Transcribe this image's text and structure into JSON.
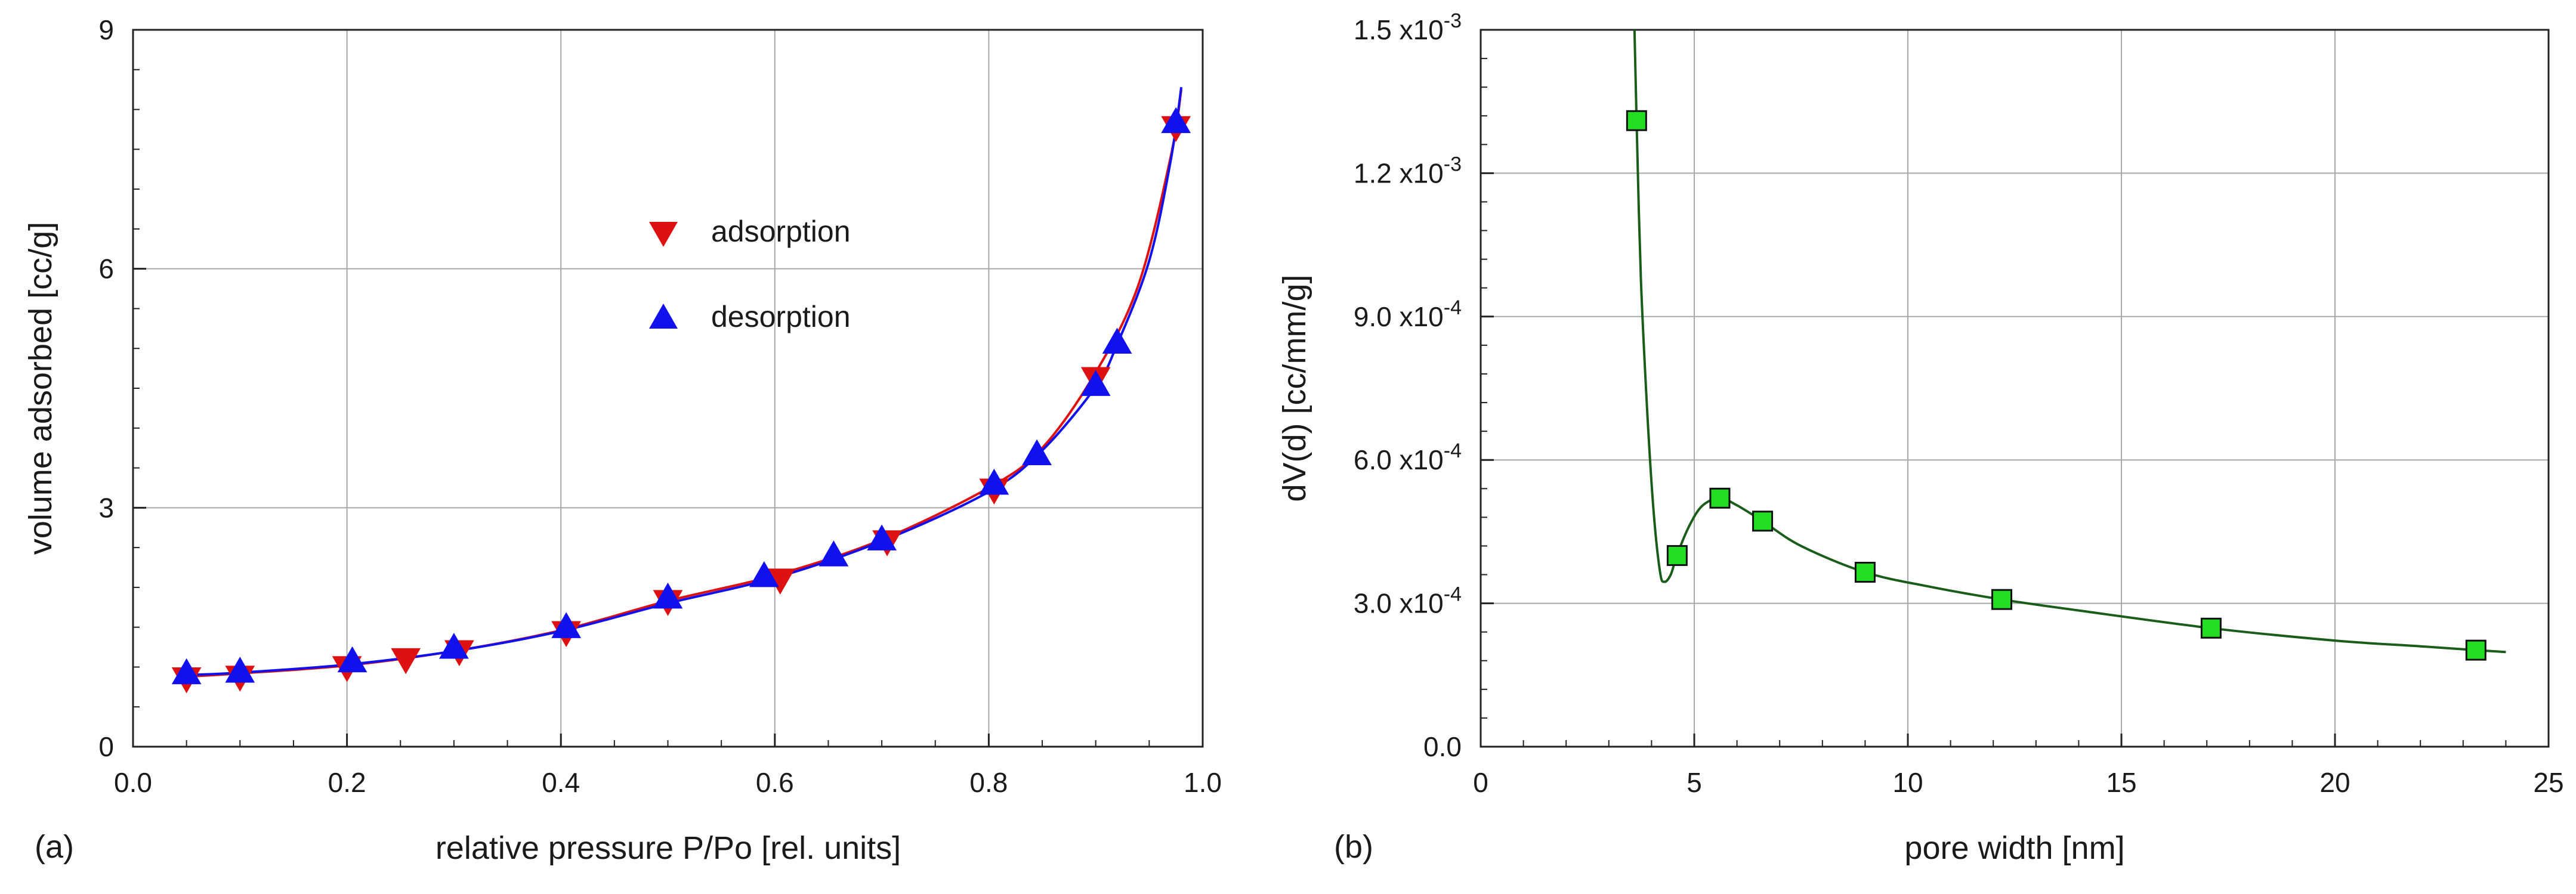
{
  "chart_data": [
    {
      "panel": "(a)",
      "type": "scatter",
      "xlabel": "relative pressure P/Po [rel. units]",
      "ylabel": "volume adsorbed [cc/g]",
      "xlim": [
        0.0,
        1.0
      ],
      "ylim": [
        0,
        9
      ],
      "xticks": [
        "0.0",
        "0.2",
        "0.4",
        "0.6",
        "0.8",
        "1.0"
      ],
      "yticks": [
        "0",
        "3",
        "6",
        "9"
      ],
      "grid": true,
      "legend_position": "upper-middle",
      "series": [
        {
          "name": "adsorption",
          "marker": "triangle-down",
          "color": "#dd1111",
          "line_color": "#dd1111",
          "x": [
            0.05,
            0.1,
            0.2,
            0.255,
            0.305,
            0.405,
            0.5,
            0.605,
            0.705,
            0.805,
            0.9,
            0.975
          ],
          "y": [
            0.88,
            0.9,
            1.02,
            1.12,
            1.22,
            1.46,
            1.85,
            2.12,
            2.6,
            3.25,
            4.65,
            7.8
          ],
          "curve": [
            [
              0.05,
              0.88
            ],
            [
              0.1,
              0.92
            ],
            [
              0.2,
              1.02
            ],
            [
              0.3,
              1.2
            ],
            [
              0.4,
              1.46
            ],
            [
              0.5,
              1.83
            ],
            [
              0.6,
              2.15
            ],
            [
              0.7,
              2.6
            ],
            [
              0.8,
              3.25
            ],
            [
              0.85,
              3.75
            ],
            [
              0.9,
              4.7
            ],
            [
              0.94,
              5.8
            ],
            [
              0.97,
              7.4
            ],
            [
              0.98,
              8.25
            ]
          ]
        },
        {
          "name": "desorption",
          "marker": "triangle-up",
          "color": "#1111ee",
          "line_color": "#1111ee",
          "x": [
            0.05,
            0.1,
            0.205,
            0.3,
            0.405,
            0.5,
            0.59,
            0.655,
            0.7,
            0.805,
            0.845,
            0.9,
            0.92,
            0.975
          ],
          "y": [
            0.9,
            0.92,
            1.05,
            1.22,
            1.48,
            1.85,
            2.12,
            2.38,
            2.58,
            3.28,
            3.65,
            4.52,
            5.05,
            7.82
          ],
          "curve": [
            [
              0.05,
              0.9
            ],
            [
              0.1,
              0.93
            ],
            [
              0.2,
              1.03
            ],
            [
              0.3,
              1.2
            ],
            [
              0.4,
              1.45
            ],
            [
              0.5,
              1.8
            ],
            [
              0.6,
              2.12
            ],
            [
              0.7,
              2.58
            ],
            [
              0.8,
              3.2
            ],
            [
              0.85,
              3.72
            ],
            [
              0.9,
              4.52
            ],
            [
              0.92,
              5.05
            ],
            [
              0.95,
              6.1
            ],
            [
              0.97,
              7.35
            ],
            [
              0.98,
              8.28
            ]
          ]
        }
      ]
    },
    {
      "panel": "(b)",
      "type": "line",
      "xlabel": "pore width [nm]",
      "ylabel": "dV(d) [cc/mm/g]",
      "xlim": [
        0,
        25
      ],
      "ylim": [
        0,
        0.0015
      ],
      "xticks": [
        "0",
        "5",
        "10",
        "15",
        "20",
        "25"
      ],
      "yticks": [
        {
          "value": 0.0,
          "mant": "0.0",
          "exp": ""
        },
        {
          "value": 0.0003,
          "mant": "3.0",
          "exp": "-4"
        },
        {
          "value": 0.0006,
          "mant": "6.0",
          "exp": "-4"
        },
        {
          "value": 0.0009,
          "mant": "9.0",
          "exp": "-4"
        },
        {
          "value": 0.0012,
          "mant": "1.2",
          "exp": "-3"
        },
        {
          "value": 0.0015,
          "mant": "1.5",
          "exp": "-3"
        }
      ],
      "tick_times_label": "x10",
      "grid": true,
      "series": [
        {
          "name": "dV(d)",
          "marker": "square",
          "color": "#22dd22",
          "line_color": "#1a5c1a",
          "x": [
            3.65,
            4.6,
            5.6,
            6.6,
            9.0,
            12.2,
            17.1,
            23.3
          ],
          "y": [
            0.00131,
            0.0004,
            0.00052,
            0.000472,
            0.000365,
            0.000308,
            0.000248,
            0.000202
          ],
          "curve": [
            [
              3.6,
              0.0015
            ],
            [
              3.65,
              0.00131
            ],
            [
              3.75,
              0.00098
            ],
            [
              3.9,
              0.0007
            ],
            [
              4.05,
              0.00049
            ],
            [
              4.2,
              0.000365
            ],
            [
              4.3,
              0.000345
            ],
            [
              4.45,
              0.00036
            ],
            [
              4.6,
              0.000402
            ],
            [
              4.9,
              0.000465
            ],
            [
              5.2,
              0.000505
            ],
            [
              5.6,
              0.00052
            ],
            [
              6.0,
              0.000505
            ],
            [
              6.6,
              0.000472
            ],
            [
              7.5,
              0.00042
            ],
            [
              9.0,
              0.000365
            ],
            [
              10.5,
              0.000335
            ],
            [
              12.2,
              0.000308
            ],
            [
              14.0,
              0.000285
            ],
            [
              17.1,
              0.000248
            ],
            [
              20.0,
              0.000222
            ],
            [
              22.0,
              0.00021
            ],
            [
              23.3,
              0.000202
            ],
            [
              24.0,
              0.000198
            ]
          ]
        }
      ]
    }
  ]
}
